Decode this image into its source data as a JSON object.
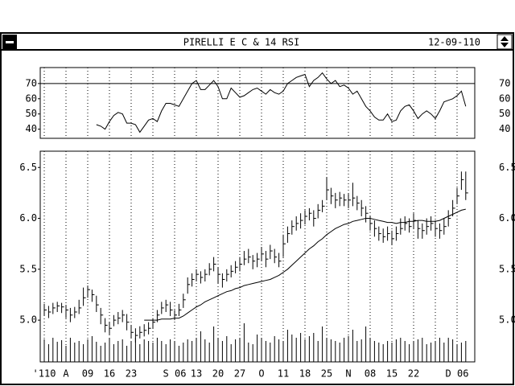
{
  "window": {
    "title": "PIRELLI E C & 14 RSI",
    "date": "12-09-110"
  },
  "chart_data": {
    "type": "ohlc",
    "categories": [
      "'110",
      null,
      null,
      null,
      null,
      "A",
      null,
      null,
      null,
      null,
      "09",
      null,
      null,
      null,
      null,
      "16",
      null,
      null,
      null,
      null,
      "23",
      null,
      null,
      null,
      null,
      null,
      null,
      null,
      null,
      null,
      "S 06",
      null,
      null,
      null,
      null,
      "13",
      null,
      null,
      null,
      null,
      "20",
      null,
      null,
      null,
      null,
      "27",
      null,
      null,
      null,
      null,
      "O",
      null,
      null,
      null,
      null,
      "11",
      null,
      null,
      null,
      null,
      "18",
      null,
      null,
      null,
      null,
      "25",
      null,
      null,
      null,
      null,
      "N",
      null,
      null,
      null,
      null,
      "08",
      null,
      null,
      null,
      null,
      "15",
      null,
      null,
      null,
      null,
      "22",
      null,
      null,
      null,
      null,
      null,
      null,
      null,
      null,
      null,
      "D 06",
      null,
      null
    ],
    "high": [
      5.16,
      5.14,
      5.17,
      5.18,
      5.17,
      5.15,
      5.12,
      5.13,
      5.2,
      5.32,
      5.34,
      5.3,
      5.24,
      5.12,
      5.02,
      4.98,
      5.05,
      5.08,
      5.1,
      5.06,
      4.95,
      4.92,
      4.94,
      4.96,
      4.98,
      5.02,
      5.1,
      5.18,
      5.2,
      5.18,
      5.1,
      5.16,
      5.26,
      5.42,
      5.46,
      5.5,
      5.48,
      5.5,
      5.56,
      5.62,
      5.52,
      5.46,
      5.5,
      5.54,
      5.58,
      5.62,
      5.68,
      5.7,
      5.64,
      5.66,
      5.72,
      5.68,
      5.74,
      5.7,
      5.66,
      5.84,
      5.92,
      5.98,
      6.02,
      6.05,
      6.08,
      6.1,
      6.08,
      6.14,
      6.18,
      6.4,
      6.3,
      6.25,
      6.26,
      6.24,
      6.24,
      6.35,
      6.22,
      6.18,
      6.12,
      6.02,
      5.98,
      5.92,
      5.9,
      5.92,
      5.88,
      5.92,
      6.0,
      6.02,
      6.0,
      6.05,
      5.98,
      5.95,
      6.0,
      6.02,
      5.98,
      5.95,
      6.0,
      6.08,
      6.18,
      6.3,
      6.46,
      6.46
    ],
    "low": [
      5.04,
      5.02,
      5.06,
      5.08,
      5.07,
      5.02,
      4.98,
      5.02,
      5.06,
      5.14,
      5.22,
      5.18,
      5.08,
      4.96,
      4.88,
      4.86,
      4.94,
      4.96,
      4.98,
      4.9,
      4.82,
      4.78,
      4.82,
      4.84,
      4.86,
      4.92,
      4.98,
      5.06,
      5.08,
      5.04,
      5.0,
      5.04,
      5.12,
      5.26,
      5.33,
      5.38,
      5.36,
      5.38,
      5.44,
      5.48,
      5.36,
      5.32,
      5.38,
      5.42,
      5.46,
      5.48,
      5.54,
      5.56,
      5.5,
      5.52,
      5.58,
      5.52,
      5.6,
      5.56,
      5.52,
      5.62,
      5.76,
      5.84,
      5.88,
      5.9,
      5.94,
      5.98,
      5.92,
      6.0,
      6.06,
      6.18,
      6.14,
      6.1,
      6.12,
      6.12,
      6.1,
      6.12,
      6.08,
      6.02,
      5.96,
      5.88,
      5.82,
      5.78,
      5.76,
      5.78,
      5.74,
      5.78,
      5.84,
      5.88,
      5.86,
      5.9,
      5.8,
      5.8,
      5.84,
      5.88,
      5.82,
      5.8,
      5.84,
      5.92,
      6.02,
      6.14,
      6.28,
      6.18
    ],
    "close": [
      5.1,
      5.08,
      5.12,
      5.14,
      5.13,
      5.1,
      5.05,
      5.08,
      5.12,
      5.22,
      5.3,
      5.25,
      5.15,
      5.05,
      4.95,
      4.92,
      5.0,
      5.02,
      5.05,
      4.98,
      4.88,
      4.85,
      4.88,
      4.9,
      4.92,
      4.98,
      5.05,
      5.12,
      5.15,
      5.1,
      5.05,
      5.1,
      5.2,
      5.35,
      5.4,
      5.45,
      5.42,
      5.45,
      5.5,
      5.55,
      5.45,
      5.4,
      5.45,
      5.48,
      5.52,
      5.55,
      5.6,
      5.62,
      5.58,
      5.6,
      5.65,
      5.6,
      5.68,
      5.62,
      5.58,
      5.75,
      5.85,
      5.92,
      5.95,
      5.98,
      6.02,
      6.05,
      6.0,
      6.08,
      6.12,
      6.28,
      6.22,
      6.18,
      6.2,
      6.18,
      6.18,
      6.2,
      6.15,
      6.1,
      6.05,
      5.95,
      5.9,
      5.85,
      5.82,
      5.85,
      5.8,
      5.85,
      5.9,
      5.95,
      5.92,
      5.98,
      5.9,
      5.88,
      5.92,
      5.95,
      5.9,
      5.88,
      5.92,
      6.0,
      6.1,
      6.22,
      6.38,
      6.25
    ],
    "ma": [
      null,
      null,
      null,
      null,
      null,
      null,
      null,
      null,
      null,
      null,
      null,
      null,
      null,
      null,
      null,
      null,
      null,
      null,
      null,
      null,
      null,
      null,
      null,
      5.0,
      5.0,
      5.0,
      5.0,
      5.01,
      5.01,
      5.01,
      5.02,
      5.02,
      5.04,
      5.07,
      5.1,
      5.13,
      5.15,
      5.18,
      5.2,
      5.22,
      5.24,
      5.26,
      5.28,
      5.29,
      5.31,
      5.32,
      5.34,
      5.35,
      5.36,
      5.37,
      5.38,
      5.39,
      5.4,
      5.42,
      5.44,
      5.47,
      5.5,
      5.54,
      5.58,
      5.62,
      5.66,
      5.7,
      5.73,
      5.77,
      5.8,
      5.84,
      5.87,
      5.9,
      5.92,
      5.94,
      5.95,
      5.97,
      5.98,
      5.99,
      6.0,
      6.0,
      5.99,
      5.98,
      5.97,
      5.96,
      5.96,
      5.95,
      5.96,
      5.96,
      5.97,
      5.97,
      5.98,
      5.98,
      5.97,
      5.97,
      5.97,
      5.98,
      6.0,
      6.02,
      6.04,
      6.06,
      6.08,
      6.09
    ],
    "volume": [
      28,
      22,
      30,
      25,
      27,
      20,
      30,
      24,
      26,
      22,
      28,
      32,
      25,
      20,
      24,
      30,
      22,
      26,
      28,
      20,
      25,
      30,
      22,
      28,
      26,
      24,
      30,
      26,
      22,
      28,
      26,
      20,
      24,
      28,
      26,
      30,
      38,
      28,
      24,
      44,
      30,
      26,
      32,
      22,
      28,
      30,
      48,
      24,
      22,
      34,
      30,
      26,
      24,
      32,
      28,
      26,
      40,
      34,
      30,
      36,
      28,
      32,
      36,
      26,
      44,
      30,
      28,
      26,
      24,
      30,
      32,
      40,
      26,
      28,
      44,
      30,
      26,
      24,
      22,
      26,
      24,
      28,
      30,
      26,
      22,
      26,
      28,
      30,
      22,
      24,
      26,
      30,
      24,
      30,
      28,
      22,
      24,
      26
    ],
    "ylim": [
      4.59,
      6.66
    ],
    "yticks": [
      {
        "value": 5.0,
        "label": "5.0"
      },
      5.5,
      {
        "value": 6.0,
        "label": "6.0"
      },
      6.5
    ],
    "rsi": {
      "values": [
        null,
        null,
        null,
        null,
        null,
        null,
        null,
        null,
        null,
        null,
        null,
        null,
        43,
        42,
        40,
        45,
        49,
        51,
        50,
        44,
        44,
        43,
        38,
        42,
        46,
        47,
        45,
        52,
        57,
        57,
        56,
        55,
        60,
        65,
        70,
        72,
        66,
        66,
        69,
        72,
        68,
        60,
        60,
        67,
        64,
        61,
        62,
        64,
        66,
        67,
        65,
        63,
        66,
        64,
        63,
        65,
        70,
        72,
        74,
        75,
        76,
        68,
        72,
        74,
        77,
        73,
        70,
        72,
        68,
        69,
        67,
        63,
        65,
        60,
        55,
        52,
        48,
        46,
        46,
        50,
        45,
        46,
        52,
        55,
        56,
        52,
        47,
        50,
        52,
        50,
        47,
        52,
        58,
        59,
        60,
        62,
        65,
        55
      ],
      "ylim": [
        34,
        80.5
      ],
      "yticks": [
        40,
        50,
        60,
        70
      ],
      "reference": 70
    }
  }
}
